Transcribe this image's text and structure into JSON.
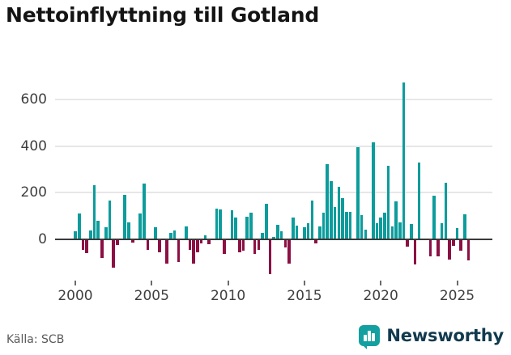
{
  "title": "Nettoinflyttning till Gotland",
  "source": "Källa: SCB",
  "brand": {
    "name": "Newsworthy"
  },
  "chart_data": {
    "type": "bar",
    "title": "Nettoinflyttning till Gotland",
    "frequency": "quarterly",
    "start_period": "2000-Q1",
    "end_period": "2025-Q4",
    "values": [
      35,
      110,
      -46,
      -58,
      37,
      232,
      81,
      -81,
      52,
      168,
      -121,
      -23,
      0,
      190,
      73,
      -15,
      0,
      110,
      240,
      -46,
      0,
      52,
      -55,
      0,
      -104,
      29,
      37,
      -98,
      0,
      55,
      -45,
      -104,
      -55,
      -17,
      17,
      -21,
      0,
      131,
      127,
      -63,
      0,
      125,
      92,
      -55,
      -50,
      98,
      115,
      -63,
      -46,
      29,
      153,
      -150,
      12,
      64,
      35,
      -35,
      -104,
      92,
      60,
      0,
      52,
      70,
      165,
      -17,
      55,
      114,
      323,
      250,
      137,
      227,
      176,
      119,
      117,
      0,
      394,
      103,
      42,
      0,
      417,
      68,
      94,
      115,
      317,
      54,
      164,
      74,
      673,
      -32,
      65,
      -108,
      331,
      0,
      0,
      -74,
      187,
      -74,
      71,
      242,
      -88,
      -26,
      48,
      -49,
      108,
      -91
    ],
    "xticks": [
      2000,
      2005,
      2010,
      2015,
      2020,
      2025
    ],
    "yticks": [
      0,
      200,
      400,
      600
    ],
    "ylim": [
      -175,
      700
    ],
    "grid": true,
    "legend": false,
    "positive_color": "#0d9c9c",
    "negative_color": "#8c1044",
    "source": "Källa: SCB"
  }
}
